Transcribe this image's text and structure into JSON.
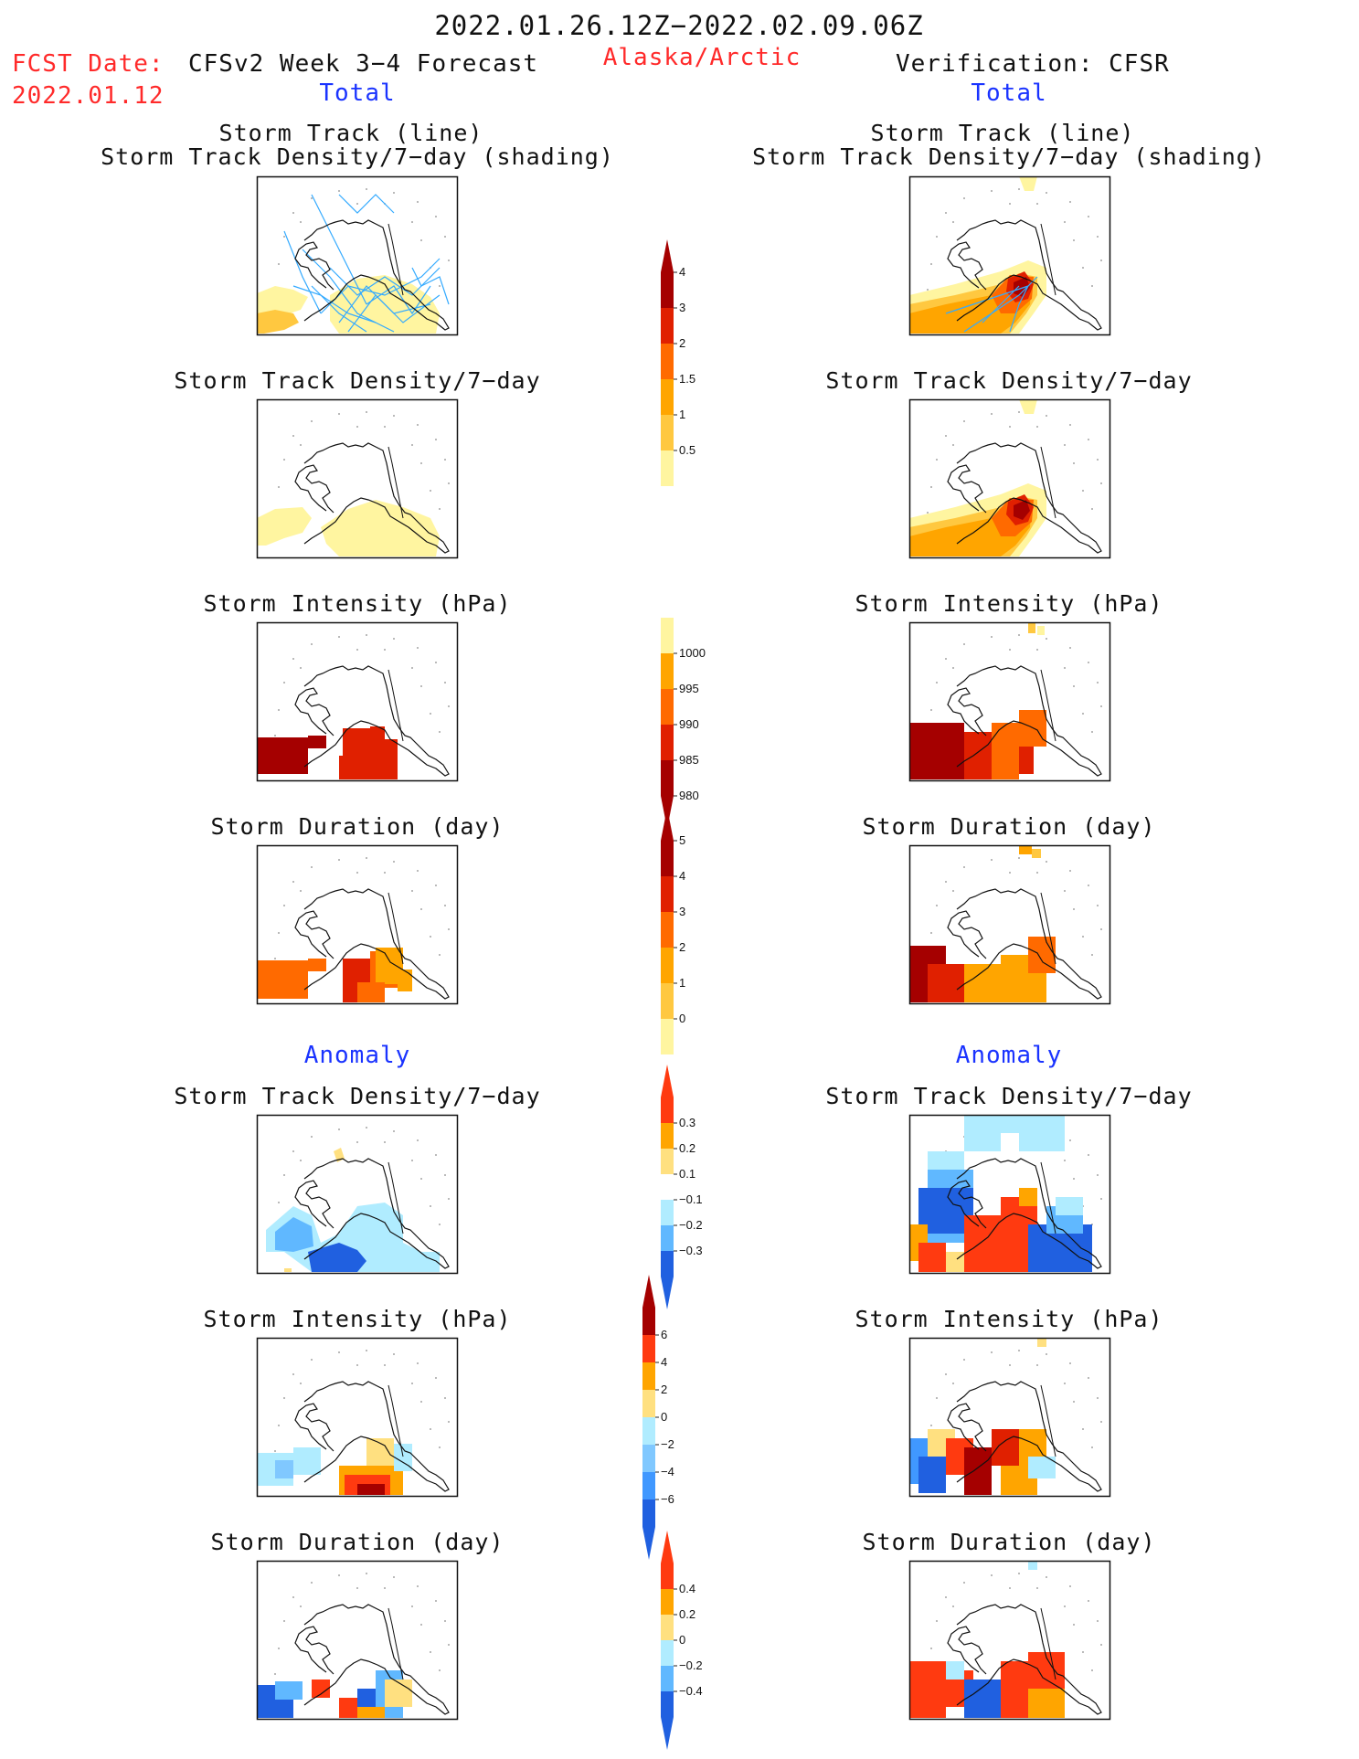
{
  "header": {
    "period": "2022.01.26.12Z−2022.02.09.06Z",
    "fcst_label": "FCST Date:",
    "fcst_date": "2022.01.12",
    "forecast_title": "CFSv2 Week 3−4 Forecast",
    "region": "Alaska/Arctic",
    "verification": "Verification: CFSR",
    "left_total": "Total",
    "right_total": "Total",
    "left_anomaly": "Anomaly",
    "right_anomaly": "Anomaly"
  },
  "panels": {
    "titles": {
      "track_line": "Storm Track (line)",
      "track_density_shading": "Storm Track Density/7−day (shading)",
      "track_density": "Storm Track Density/7−day",
      "intensity": "Storm Intensity (hPa)",
      "duration": "Storm Duration (day)"
    }
  },
  "colorbars": {
    "density": {
      "labels": [
        "4",
        "3",
        "2",
        "1.5",
        "1",
        "0.5"
      ],
      "colors": [
        "#a50000",
        "#e02000",
        "#ff6a00",
        "#ffa500",
        "#ffc840",
        "#fff5a0"
      ]
    },
    "intensity": {
      "labels": [
        "1000",
        "995",
        "990",
        "985",
        "980"
      ],
      "colors": [
        "#fff5a0",
        "#ffa500",
        "#ff6a00",
        "#e02000",
        "#a50000"
      ]
    },
    "duration": {
      "labels": [
        "5",
        "4",
        "3",
        "2",
        "1",
        "0"
      ],
      "colors": [
        "#a50000",
        "#e02000",
        "#ff6a00",
        "#ffa500",
        "#ffc840",
        "#fff5a0"
      ]
    },
    "anom_density": {
      "labels": [
        "0.3",
        "0.2",
        "0.1",
        "−0.1",
        "−0.2",
        "−0.3"
      ],
      "colors": [
        "#ff3a10",
        "#ffa500",
        "#ffe080",
        "#ffffff",
        "#b0ecff",
        "#60b8ff",
        "#2060e0"
      ]
    },
    "anom_intensity": {
      "labels": [
        "6",
        "4",
        "2",
        "0",
        "−2",
        "−4",
        "−6"
      ],
      "colors": [
        "#a50000",
        "#ff3a10",
        "#ffa500",
        "#ffe080",
        "#b0ecff",
        "#80c8ff",
        "#4098ff",
        "#2060e0"
      ]
    },
    "anom_duration": {
      "labels": [
        "0.4",
        "0.2",
        "0",
        "−0.2",
        "−0.4"
      ],
      "colors": [
        "#ff3a10",
        "#ffa500",
        "#ffe080",
        "#b0ecff",
        "#60b8ff",
        "#2060e0"
      ]
    }
  }
}
